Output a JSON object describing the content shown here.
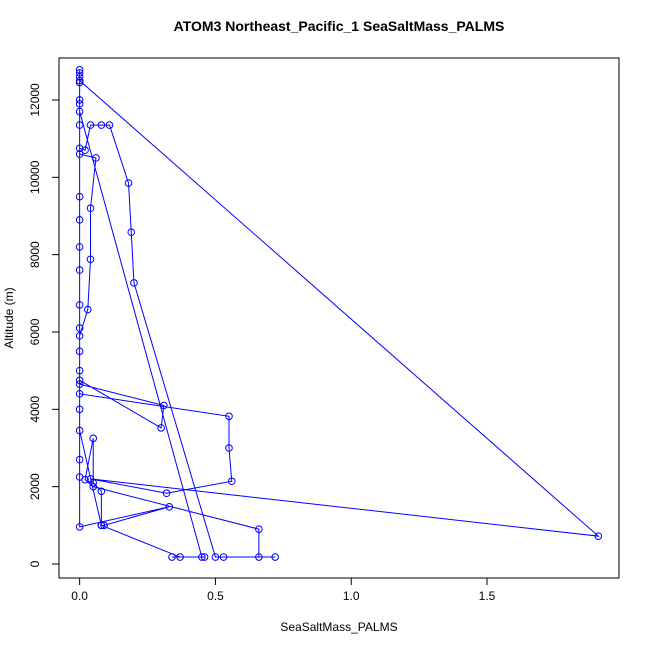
{
  "chart_data": {
    "type": "line",
    "title": "ATOM3 Northeast_Pacific_1 SeaSaltMass_PALMS",
    "x_label": "SeaSaltMass_PALMS",
    "y_label": "Altitude (m)",
    "color": "#0000ff",
    "x": [
      0,
      0,
      0,
      0,
      0,
      0,
      0,
      0.45,
      0.46,
      0.34,
      0.37,
      0.08,
      0.09,
      0.33,
      0,
      0,
      0,
      0,
      1.91,
      0.04,
      0.32,
      0.56,
      0.55,
      0.55,
      0,
      0,
      0.31,
      0.3,
      0,
      0,
      0,
      0,
      0.03,
      0.04,
      0.04,
      0.06,
      0,
      0,
      0.02,
      0.04,
      0.08,
      0.11,
      0.18,
      0.19,
      0.2,
      0.5,
      0.53,
      0.72,
      0.66,
      0.66,
      0.05,
      0.02,
      0.05,
      0.05,
      0.08,
      0.08,
      0,
      0,
      0,
      0,
      0,
      0,
      0,
      0,
      0
    ],
    "y": [
      12780,
      12700,
      12600,
      12450,
      12000,
      11900,
      11700,
      180,
      180,
      180,
      180,
      1000,
      1000,
      1480,
      960,
      2250,
      2700,
      12500,
      720,
      2200,
      1830,
      2140,
      3000,
      3820,
      4400,
      4650,
      4100,
      3520,
      4750,
      5000,
      5500,
      5900,
      6580,
      7880,
      9200,
      10500,
      10600,
      10750,
      10700,
      11350,
      11350,
      11350,
      9850,
      8580,
      7270,
      180,
      180,
      180,
      180,
      900,
      2000,
      2180,
      3250,
      2100,
      1880,
      1000,
      3450,
      4000,
      6100,
      6700,
      7600,
      8200,
      8900,
      9500,
      11350
    ],
    "xlim": [
      -0.076,
      1.986
    ],
    "ylim": [
      -362,
      13085
    ],
    "xticks": [
      {
        "value": 0,
        "label": "0.0"
      },
      {
        "value": 0.5,
        "label": "0.5"
      },
      {
        "value": 1,
        "label": "1.0"
      },
      {
        "value": 1.5,
        "label": "1.5"
      }
    ],
    "yticks": [
      0,
      2000,
      4000,
      6000,
      8000,
      10000,
      12000
    ]
  }
}
